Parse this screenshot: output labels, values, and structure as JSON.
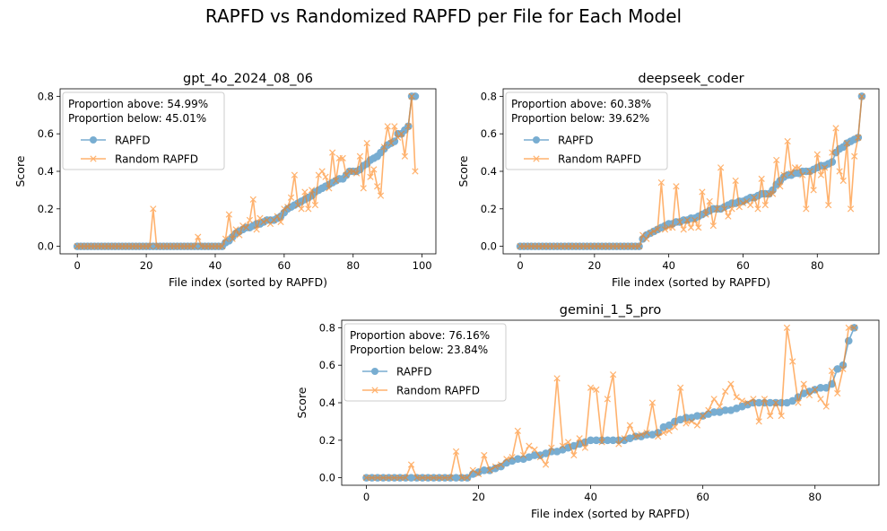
{
  "figure": {
    "title": "RAPFD vs Randomized RAPFD per File for Each Model"
  },
  "colors": {
    "rapfd": "#1f77b4",
    "random": "#ff7f0e"
  },
  "chart_data": [
    {
      "type": "line",
      "title": "gpt_4o_2024_08_06",
      "xlabel": "File index (sorted by RAPFD)",
      "ylabel": "Score",
      "xlim": [
        -5,
        104
      ],
      "ylim": [
        -0.04,
        0.84
      ],
      "xticks": [
        0,
        20,
        40,
        60,
        80,
        100
      ],
      "yticks": [
        0.0,
        0.2,
        0.4,
        0.6,
        0.8
      ],
      "annotation": [
        "Proportion above: 54.99%",
        "Proportion below: 45.01%"
      ],
      "legend": [
        "RAPFD",
        "Random RAPFD"
      ],
      "legend_loc": "upper left",
      "x": [
        0,
        1,
        2,
        3,
        4,
        5,
        6,
        7,
        8,
        9,
        10,
        11,
        12,
        13,
        14,
        15,
        16,
        17,
        18,
        19,
        20,
        21,
        22,
        23,
        24,
        25,
        26,
        27,
        28,
        29,
        30,
        31,
        32,
        33,
        34,
        35,
        36,
        37,
        38,
        39,
        40,
        41,
        42,
        43,
        44,
        45,
        46,
        47,
        48,
        49,
        50,
        51,
        52,
        53,
        54,
        55,
        56,
        57,
        58,
        59,
        60,
        61,
        62,
        63,
        64,
        65,
        66,
        67,
        68,
        69,
        70,
        71,
        72,
        73,
        74,
        75,
        76,
        77,
        78,
        79,
        80,
        81,
        82,
        83,
        84,
        85,
        86,
        87,
        88,
        89,
        90,
        91,
        92,
        93,
        94,
        95,
        96,
        97,
        98
      ],
      "series": [
        {
          "name": "RAPFD",
          "marker": "o",
          "values": [
            0,
            0,
            0,
            0,
            0,
            0,
            0,
            0,
            0,
            0,
            0,
            0,
            0,
            0,
            0,
            0,
            0,
            0,
            0,
            0,
            0,
            0,
            0,
            0,
            0,
            0,
            0,
            0,
            0,
            0,
            0,
            0,
            0,
            0,
            0,
            0,
            0,
            0,
            0,
            0,
            0,
            0,
            0,
            0.02,
            0.03,
            0.05,
            0.07,
            0.08,
            0.09,
            0.1,
            0.1,
            0.11,
            0.12,
            0.12,
            0.13,
            0.14,
            0.14,
            0.14,
            0.15,
            0.16,
            0.18,
            0.2,
            0.21,
            0.22,
            0.23,
            0.24,
            0.25,
            0.26,
            0.27,
            0.29,
            0.3,
            0.31,
            0.32,
            0.33,
            0.34,
            0.35,
            0.36,
            0.36,
            0.38,
            0.4,
            0.4,
            0.4,
            0.41,
            0.43,
            0.44,
            0.46,
            0.47,
            0.48,
            0.5,
            0.52,
            0.54,
            0.55,
            0.56,
            0.6,
            0.6,
            0.62,
            0.64,
            0.8,
            0.8
          ]
        },
        {
          "name": "Random RAPFD",
          "marker": "x",
          "values": [
            0,
            0,
            0,
            0,
            0,
            0,
            0,
            0,
            0,
            0,
            0,
            0,
            0,
            0,
            0,
            0,
            0,
            0,
            0,
            0,
            0,
            0,
            0.2,
            0,
            0,
            0,
            0,
            0,
            0,
            0,
            0,
            0,
            0,
            0,
            0,
            0.05,
            0,
            0,
            0,
            0,
            0,
            0,
            0,
            0.04,
            0.17,
            0.04,
            0.09,
            0.06,
            0.11,
            0.1,
            0.14,
            0.25,
            0.09,
            0.15,
            0.13,
            0.14,
            0.12,
            0.14,
            0.16,
            0.13,
            0.2,
            0.21,
            0.26,
            0.38,
            0.22,
            0.2,
            0.29,
            0.2,
            0.3,
            0.22,
            0.38,
            0.4,
            0.37,
            0.31,
            0.5,
            0.35,
            0.47,
            0.47,
            0.38,
            0.4,
            0.4,
            0.39,
            0.48,
            0.31,
            0.55,
            0.37,
            0.41,
            0.32,
            0.27,
            0.53,
            0.64,
            0.55,
            0.64,
            0.58,
            0.6,
            0.48,
            0.64,
            0.8,
            0.4
          ]
        }
      ]
    },
    {
      "type": "line",
      "title": "deepseek_coder",
      "xlabel": "File index (sorted by RAPFD)",
      "ylabel": "Score",
      "xlim": [
        -4.6,
        96.6
      ],
      "ylim": [
        -0.04,
        0.84
      ],
      "xticks": [
        0,
        20,
        40,
        60,
        80
      ],
      "yticks": [
        0.0,
        0.2,
        0.4,
        0.6,
        0.8
      ],
      "annotation": [
        "Proportion above: 60.38%",
        "Proportion below: 39.62%"
      ],
      "legend": [
        "RAPFD",
        "Random RAPFD"
      ],
      "legend_loc": "upper left",
      "x": [
        0,
        1,
        2,
        3,
        4,
        5,
        6,
        7,
        8,
        9,
        10,
        11,
        12,
        13,
        14,
        15,
        16,
        17,
        18,
        19,
        20,
        21,
        22,
        23,
        24,
        25,
        26,
        27,
        28,
        29,
        30,
        31,
        32,
        33,
        34,
        35,
        36,
        37,
        38,
        39,
        40,
        41,
        42,
        43,
        44,
        45,
        46,
        47,
        48,
        49,
        50,
        51,
        52,
        53,
        54,
        55,
        56,
        57,
        58,
        59,
        60,
        61,
        62,
        63,
        64,
        65,
        66,
        67,
        68,
        69,
        70,
        71,
        72,
        73,
        74,
        75,
        76,
        77,
        78,
        79,
        80,
        81,
        82,
        83,
        84,
        85,
        86,
        87,
        88,
        89,
        90,
        91,
        92
      ],
      "series": [
        {
          "name": "RAPFD",
          "marker": "o",
          "values": [
            0,
            0,
            0,
            0,
            0,
            0,
            0,
            0,
            0,
            0,
            0,
            0,
            0,
            0,
            0,
            0,
            0,
            0,
            0,
            0,
            0,
            0,
            0,
            0,
            0,
            0,
            0,
            0,
            0,
            0,
            0,
            0,
            0,
            0.04,
            0.06,
            0.07,
            0.08,
            0.09,
            0.1,
            0.11,
            0.12,
            0.12,
            0.13,
            0.13,
            0.14,
            0.14,
            0.15,
            0.15,
            0.16,
            0.17,
            0.18,
            0.19,
            0.2,
            0.2,
            0.2,
            0.21,
            0.22,
            0.23,
            0.23,
            0.24,
            0.24,
            0.25,
            0.26,
            0.26,
            0.27,
            0.28,
            0.28,
            0.28,
            0.3,
            0.33,
            0.35,
            0.37,
            0.38,
            0.38,
            0.39,
            0.39,
            0.4,
            0.4,
            0.4,
            0.41,
            0.42,
            0.43,
            0.43,
            0.44,
            0.45,
            0.5,
            0.52,
            0.53,
            0.55,
            0.56,
            0.57,
            0.58,
            0.8
          ]
        },
        {
          "name": "Random RAPFD",
          "marker": "x",
          "values": [
            0,
            0,
            0,
            0,
            0,
            0,
            0,
            0,
            0,
            0,
            0,
            0,
            0,
            0,
            0,
            0,
            0,
            0,
            0,
            0,
            0,
            0,
            0,
            0,
            0,
            0,
            0,
            0,
            0,
            0,
            0,
            0,
            0,
            0.06,
            0.04,
            0.07,
            0.08,
            0.09,
            0.34,
            0.09,
            0.1,
            0.1,
            0.32,
            0.13,
            0.09,
            0.14,
            0.1,
            0.14,
            0.1,
            0.29,
            0.17,
            0.24,
            0.11,
            0.2,
            0.42,
            0.2,
            0.16,
            0.2,
            0.35,
            0.21,
            0.23,
            0.24,
            0.22,
            0.26,
            0.2,
            0.36,
            0.22,
            0.28,
            0.28,
            0.46,
            0.32,
            0.38,
            0.56,
            0.39,
            0.42,
            0.42,
            0.38,
            0.2,
            0.4,
            0.3,
            0.49,
            0.38,
            0.42,
            0.22,
            0.5,
            0.63,
            0.4,
            0.35,
            0.55,
            0.2,
            0.48,
            0.58,
            0.8
          ]
        }
      ]
    },
    {
      "type": "line",
      "title": "gemini_1_5_pro",
      "xlabel": "File index (sorted by RAPFD)",
      "ylabel": "Score",
      "xlim": [
        -4.4,
        91.4
      ],
      "ylim": [
        -0.04,
        0.84
      ],
      "xticks": [
        0,
        20,
        40,
        60,
        80
      ],
      "yticks": [
        0.0,
        0.2,
        0.4,
        0.6,
        0.8
      ],
      "annotation": [
        "Proportion above: 76.16%",
        "Proportion below: 23.84%"
      ],
      "legend": [
        "RAPFD",
        "Random RAPFD"
      ],
      "legend_loc": "upper left",
      "x": [
        0,
        1,
        2,
        3,
        4,
        5,
        6,
        7,
        8,
        9,
        10,
        11,
        12,
        13,
        14,
        15,
        16,
        17,
        18,
        19,
        20,
        21,
        22,
        23,
        24,
        25,
        26,
        27,
        28,
        29,
        30,
        31,
        32,
        33,
        34,
        35,
        36,
        37,
        38,
        39,
        40,
        41,
        42,
        43,
        44,
        45,
        46,
        47,
        48,
        49,
        50,
        51,
        52,
        53,
        54,
        55,
        56,
        57,
        58,
        59,
        60,
        61,
        62,
        63,
        64,
        65,
        66,
        67,
        68,
        69,
        70,
        71,
        72,
        73,
        74,
        75,
        76,
        77,
        78,
        79,
        80,
        81,
        82,
        83,
        84,
        85,
        86,
        87
      ],
      "series": [
        {
          "name": "RAPFD",
          "marker": "o",
          "values": [
            0,
            0,
            0,
            0,
            0,
            0,
            0,
            0,
            0,
            0,
            0,
            0,
            0,
            0,
            0,
            0,
            0,
            0,
            0,
            0.02,
            0.03,
            0.04,
            0.04,
            0.05,
            0.06,
            0.08,
            0.09,
            0.1,
            0.1,
            0.11,
            0.12,
            0.12,
            0.13,
            0.14,
            0.14,
            0.15,
            0.16,
            0.17,
            0.18,
            0.19,
            0.2,
            0.2,
            0.2,
            0.2,
            0.2,
            0.2,
            0.2,
            0.21,
            0.22,
            0.22,
            0.23,
            0.23,
            0.24,
            0.27,
            0.28,
            0.3,
            0.31,
            0.32,
            0.32,
            0.33,
            0.33,
            0.34,
            0.35,
            0.35,
            0.36,
            0.36,
            0.37,
            0.38,
            0.39,
            0.4,
            0.4,
            0.4,
            0.4,
            0.4,
            0.4,
            0.4,
            0.41,
            0.43,
            0.45,
            0.46,
            0.47,
            0.48,
            0.48,
            0.5,
            0.58,
            0.6,
            0.73,
            0.8
          ]
        },
        {
          "name": "Random RAPFD",
          "marker": "x",
          "values": [
            0,
            0,
            0,
            0,
            0,
            0,
            0,
            0,
            0.07,
            0,
            0,
            0,
            0,
            0,
            0,
            0,
            0.14,
            0,
            0,
            0.04,
            0.02,
            0.12,
            0.04,
            0.06,
            0.07,
            0.1,
            0.11,
            0.25,
            0.12,
            0.17,
            0.15,
            0.11,
            0.07,
            0.16,
            0.53,
            0.17,
            0.19,
            0.12,
            0.21,
            0.16,
            0.48,
            0.47,
            0.19,
            0.42,
            0.55,
            0.18,
            0.21,
            0.28,
            0.22,
            0.23,
            0.24,
            0.4,
            0.22,
            0.24,
            0.25,
            0.27,
            0.48,
            0.29,
            0.3,
            0.28,
            0.33,
            0.36,
            0.42,
            0.38,
            0.46,
            0.5,
            0.43,
            0.41,
            0.4,
            0.42,
            0.3,
            0.42,
            0.33,
            0.4,
            0.33,
            0.8,
            0.62,
            0.4,
            0.5,
            0.44,
            0.47,
            0.42,
            0.38,
            0.57,
            0.45,
            0.58,
            0.8,
            0.8
          ]
        }
      ]
    }
  ]
}
